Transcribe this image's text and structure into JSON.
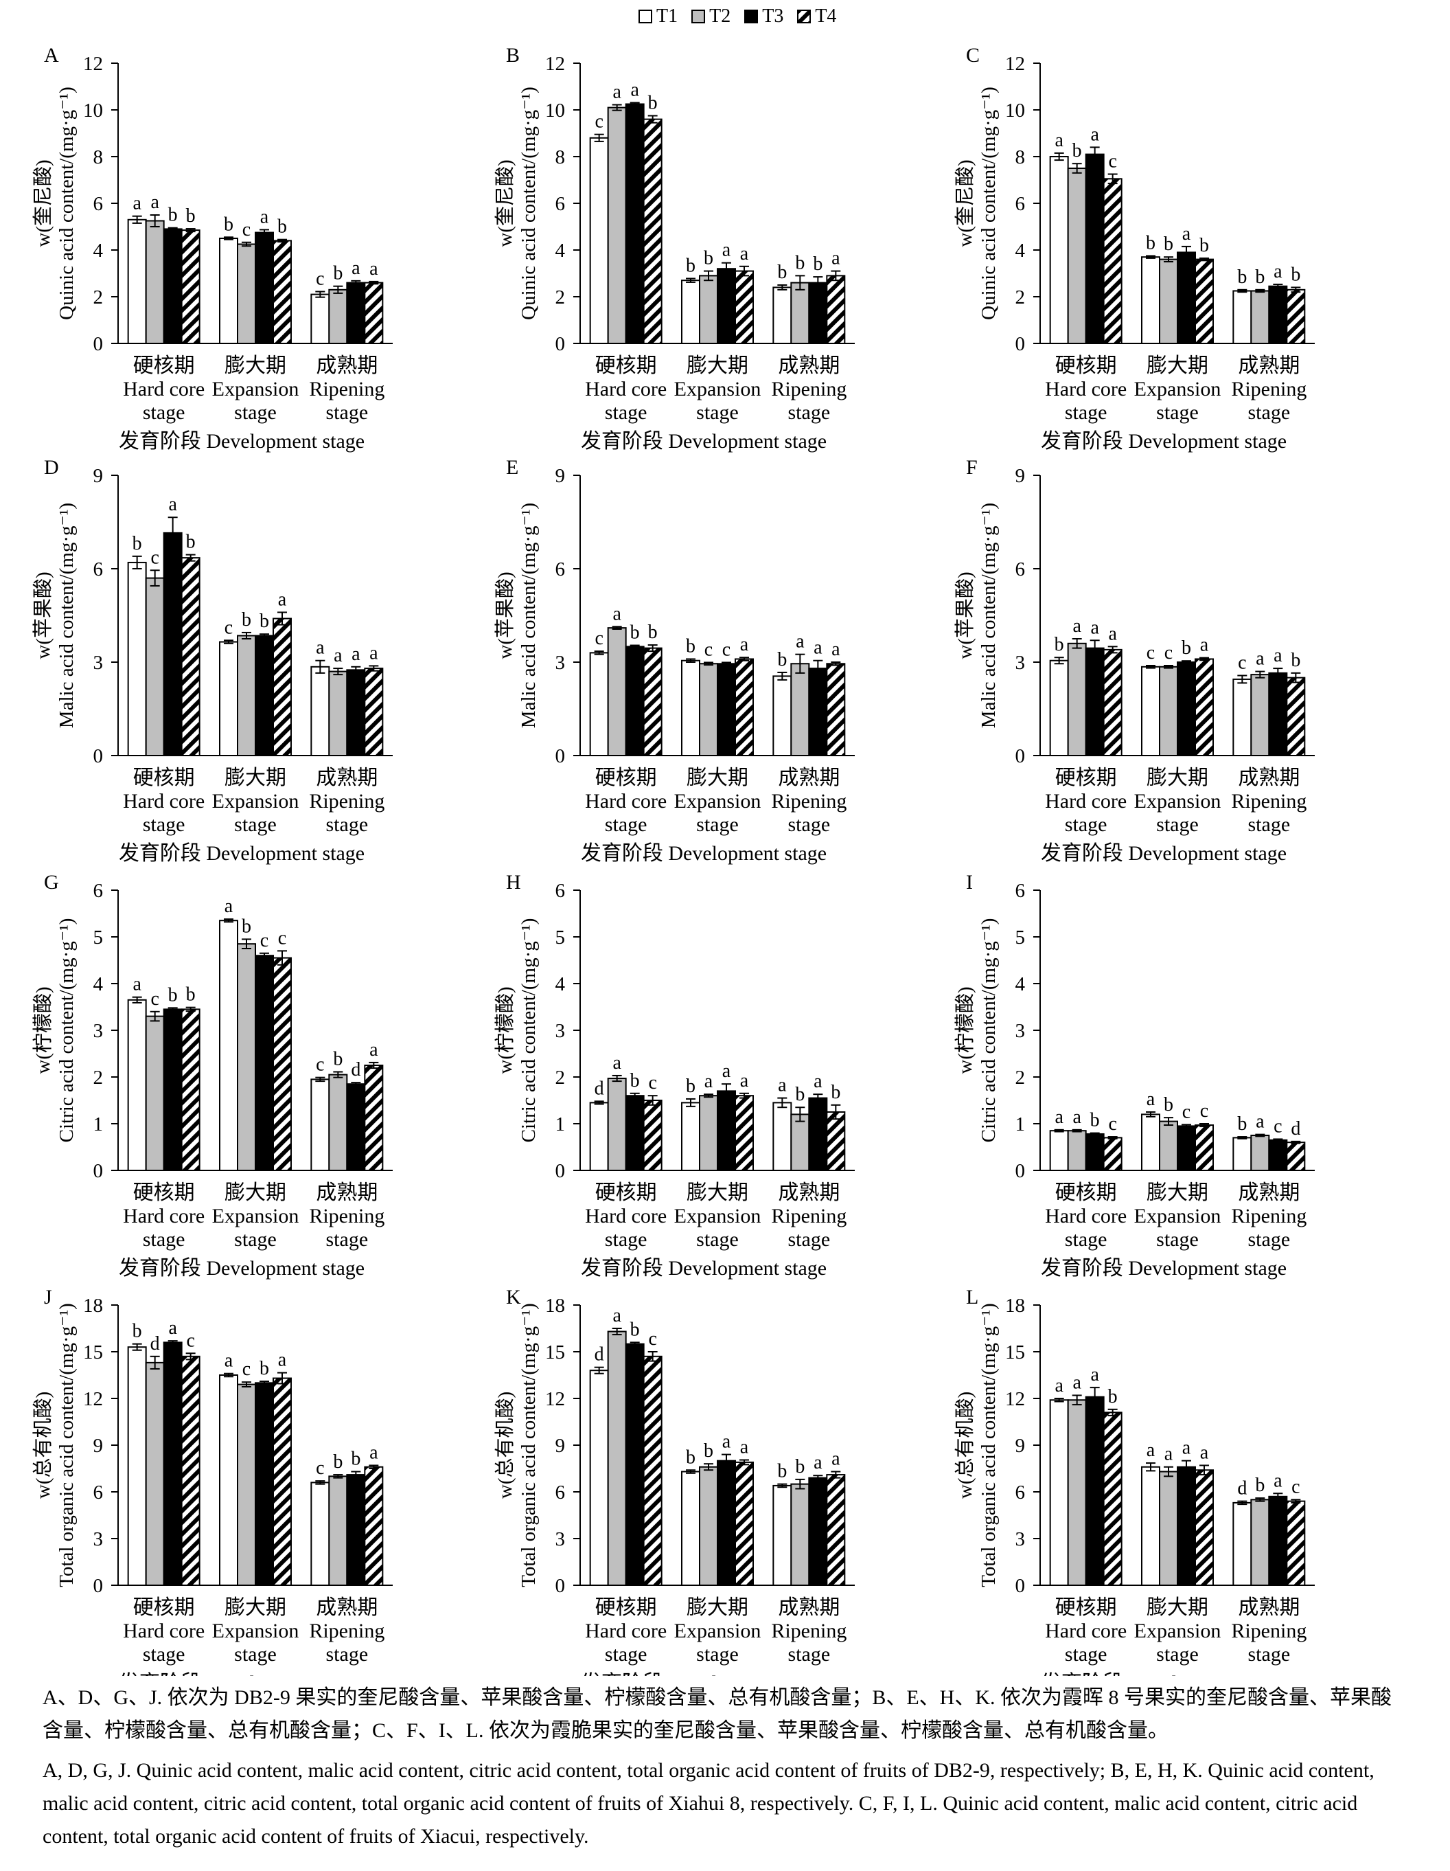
{
  "legend": {
    "items": [
      {
        "label": "T1",
        "fill": "#ffffff",
        "pattern": "none"
      },
      {
        "label": "T2",
        "fill": "#bfbfbf",
        "pattern": "none"
      },
      {
        "label": "T3",
        "fill": "#000000",
        "pattern": "none"
      },
      {
        "label": "T4",
        "fill": "#ffffff",
        "pattern": "diagonal-hatch"
      }
    ]
  },
  "shared": {
    "categories_cn": [
      "硬核期",
      "膨大期",
      "成熟期"
    ],
    "categories_en_line1": [
      "Hard core",
      "Expansion",
      "Ripening"
    ],
    "categories_en_line2": [
      "stage",
      "stage",
      "stage"
    ],
    "xlabel": "发育阶段 Development stage"
  },
  "chart_data": [
    {
      "panel": "A",
      "type": "bar",
      "ylabel_cn": "w(奎尼酸)",
      "ylabel_en": "Quinic acid content/(mg·g⁻¹)",
      "ylim": [
        0,
        12
      ],
      "yticks": [
        0,
        2,
        4,
        6,
        8,
        10,
        12
      ],
      "series": [
        {
          "name": "T1",
          "values": [
            5.3,
            4.5,
            2.1
          ],
          "errors": [
            0.15,
            0.05,
            0.12
          ]
        },
        {
          "name": "T2",
          "values": [
            5.25,
            4.25,
            2.3
          ],
          "errors": [
            0.25,
            0.08,
            0.15
          ]
        },
        {
          "name": "T3",
          "values": [
            4.9,
            4.75,
            2.6
          ],
          "errors": [
            0.05,
            0.12,
            0.08
          ]
        },
        {
          "name": "T4",
          "values": [
            4.85,
            4.4,
            2.6
          ],
          "errors": [
            0.06,
            0.05,
            0.05
          ]
        }
      ],
      "letters": [
        [
          "a",
          "a",
          "b",
          "b"
        ],
        [
          "b",
          "c",
          "a",
          "b"
        ],
        [
          "c",
          "b",
          "a",
          "a"
        ]
      ]
    },
    {
      "panel": "B",
      "type": "bar",
      "ylabel_cn": "w(奎尼酸)",
      "ylabel_en": "Quinic acid content/(mg·g⁻¹)",
      "ylim": [
        0,
        12
      ],
      "yticks": [
        0,
        2,
        4,
        6,
        8,
        10,
        12
      ],
      "series": [
        {
          "name": "T1",
          "values": [
            8.8,
            2.7,
            2.4
          ],
          "errors": [
            0.15,
            0.08,
            0.1
          ]
        },
        {
          "name": "T2",
          "values": [
            10.1,
            2.9,
            2.6
          ],
          "errors": [
            0.12,
            0.2,
            0.3
          ]
        },
        {
          "name": "T3",
          "values": [
            10.25,
            3.2,
            2.6
          ],
          "errors": [
            0.06,
            0.25,
            0.25
          ]
        },
        {
          "name": "T4",
          "values": [
            9.6,
            3.1,
            2.9
          ],
          "errors": [
            0.15,
            0.2,
            0.2
          ]
        }
      ],
      "letters": [
        [
          "c",
          "a",
          "a",
          "b"
        ],
        [
          "b",
          "b",
          "a",
          "a"
        ],
        [
          "b",
          "b",
          "b",
          "a"
        ]
      ]
    },
    {
      "panel": "C",
      "type": "bar",
      "ylabel_cn": "w(奎尼酸)",
      "ylabel_en": "Quinic acid content/(mg·g⁻¹)",
      "ylim": [
        0,
        12
      ],
      "yticks": [
        0,
        2,
        4,
        6,
        8,
        10,
        12
      ],
      "series": [
        {
          "name": "T1",
          "values": [
            8.0,
            3.7,
            2.25
          ],
          "errors": [
            0.15,
            0.05,
            0.05
          ]
        },
        {
          "name": "T2",
          "values": [
            7.5,
            3.6,
            2.25
          ],
          "errors": [
            0.2,
            0.1,
            0.05
          ]
        },
        {
          "name": "T3",
          "values": [
            8.1,
            3.9,
            2.45
          ],
          "errors": [
            0.3,
            0.25,
            0.08
          ]
        },
        {
          "name": "T4",
          "values": [
            7.05,
            3.6,
            2.3
          ],
          "errors": [
            0.2,
            0.05,
            0.1
          ]
        }
      ],
      "letters": [
        [
          "a",
          "b",
          "a",
          "c"
        ],
        [
          "b",
          "b",
          "a",
          "b"
        ],
        [
          "b",
          "b",
          "a",
          "b"
        ]
      ]
    },
    {
      "panel": "D",
      "type": "bar",
      "ylabel_cn": "w(苹果酸)",
      "ylabel_en": "Malic acid content/(mg·g⁻¹)",
      "ylim": [
        0,
        9
      ],
      "yticks": [
        0,
        3,
        6,
        9
      ],
      "series": [
        {
          "name": "T1",
          "values": [
            6.2,
            3.65,
            2.85
          ],
          "errors": [
            0.2,
            0.05,
            0.2
          ]
        },
        {
          "name": "T2",
          "values": [
            5.7,
            3.85,
            2.7
          ],
          "errors": [
            0.25,
            0.1,
            0.1
          ]
        },
        {
          "name": "T3",
          "values": [
            7.15,
            3.85,
            2.75
          ],
          "errors": [
            0.5,
            0.05,
            0.1
          ]
        },
        {
          "name": "T4",
          "values": [
            6.35,
            4.4,
            2.8
          ],
          "errors": [
            0.1,
            0.2,
            0.08
          ]
        }
      ],
      "letters": [
        [
          "b",
          "c",
          "a",
          "b"
        ],
        [
          "c",
          "b",
          "b",
          "a"
        ],
        [
          "a",
          "a",
          "a",
          "a"
        ]
      ]
    },
    {
      "panel": "E",
      "type": "bar",
      "ylabel_cn": "w(苹果酸)",
      "ylabel_en": "Malic acid content/(mg·g⁻¹)",
      "ylim": [
        0,
        9
      ],
      "yticks": [
        0,
        3,
        6,
        9
      ],
      "series": [
        {
          "name": "T1",
          "values": [
            3.3,
            3.05,
            2.55
          ],
          "errors": [
            0.05,
            0.05,
            0.12
          ]
        },
        {
          "name": "T2",
          "values": [
            4.1,
            2.95,
            2.95
          ],
          "errors": [
            0.04,
            0.04,
            0.3
          ]
        },
        {
          "name": "T3",
          "values": [
            3.5,
            2.95,
            2.8
          ],
          "errors": [
            0.04,
            0.04,
            0.25
          ]
        },
        {
          "name": "T4",
          "values": [
            3.45,
            3.1,
            2.95
          ],
          "errors": [
            0.1,
            0.05,
            0.05
          ]
        }
      ],
      "letters": [
        [
          "c",
          "a",
          "b",
          "b"
        ],
        [
          "b",
          "c",
          "c",
          "a"
        ],
        [
          "b",
          "a",
          "a",
          "a"
        ]
      ]
    },
    {
      "panel": "F",
      "type": "bar",
      "ylabel_cn": "w(苹果酸)",
      "ylabel_en": "Malic acid content/(mg·g⁻¹)",
      "ylim": [
        0,
        9
      ],
      "yticks": [
        0,
        3,
        6,
        9
      ],
      "series": [
        {
          "name": "T1",
          "values": [
            3.05,
            2.85,
            2.45
          ],
          "errors": [
            0.1,
            0.04,
            0.12
          ]
        },
        {
          "name": "T2",
          "values": [
            3.6,
            2.85,
            2.6
          ],
          "errors": [
            0.15,
            0.04,
            0.1
          ]
        },
        {
          "name": "T3",
          "values": [
            3.45,
            3.0,
            2.65
          ],
          "errors": [
            0.25,
            0.04,
            0.15
          ]
        },
        {
          "name": "T4",
          "values": [
            3.4,
            3.1,
            2.5
          ],
          "errors": [
            0.1,
            0.04,
            0.15
          ]
        }
      ],
      "letters": [
        [
          "b",
          "a",
          "a",
          "a"
        ],
        [
          "c",
          "c",
          "b",
          "a"
        ],
        [
          "c",
          "a",
          "a",
          "b"
        ]
      ]
    },
    {
      "panel": "G",
      "type": "bar",
      "ylabel_cn": "w(柠檬酸)",
      "ylabel_en": "Citric acid content/(mg·g⁻¹)",
      "ylim": [
        0,
        6
      ],
      "yticks": [
        0,
        1,
        2,
        3,
        4,
        5,
        6
      ],
      "series": [
        {
          "name": "T1",
          "values": [
            3.65,
            5.35,
            1.95
          ],
          "errors": [
            0.06,
            0.03,
            0.04
          ]
        },
        {
          "name": "T2",
          "values": [
            3.3,
            4.85,
            2.05
          ],
          "errors": [
            0.1,
            0.1,
            0.06
          ]
        },
        {
          "name": "T3",
          "values": [
            3.45,
            4.6,
            1.85
          ],
          "errors": [
            0.03,
            0.05,
            0.03
          ]
        },
        {
          "name": "T4",
          "values": [
            3.45,
            4.55,
            2.25
          ],
          "errors": [
            0.04,
            0.15,
            0.06
          ]
        }
      ],
      "letters": [
        [
          "a",
          "c",
          "b",
          "b"
        ],
        [
          "a",
          "b",
          "c",
          "c"
        ],
        [
          "c",
          "b",
          "d",
          "a"
        ]
      ]
    },
    {
      "panel": "H",
      "type": "bar",
      "ylabel_cn": "w(柠檬酸)",
      "ylabel_en": "Citric acid content/(mg·g⁻¹)",
      "ylim": [
        0,
        6
      ],
      "yticks": [
        0,
        1,
        2,
        3,
        4,
        5,
        6
      ],
      "series": [
        {
          "name": "T1",
          "values": [
            1.45,
            1.45,
            1.45
          ],
          "errors": [
            0.03,
            0.08,
            0.1
          ]
        },
        {
          "name": "T2",
          "values": [
            1.97,
            1.6,
            1.2
          ],
          "errors": [
            0.06,
            0.03,
            0.15
          ]
        },
        {
          "name": "T3",
          "values": [
            1.6,
            1.7,
            1.55
          ],
          "errors": [
            0.05,
            0.15,
            0.08
          ]
        },
        {
          "name": "T4",
          "values": [
            1.5,
            1.6,
            1.25
          ],
          "errors": [
            0.1,
            0.05,
            0.15
          ]
        }
      ],
      "letters": [
        [
          "d",
          "a",
          "b",
          "c"
        ],
        [
          "b",
          "a",
          "a",
          "a"
        ],
        [
          "a",
          "b",
          "a",
          "b"
        ]
      ]
    },
    {
      "panel": "I",
      "type": "bar",
      "ylabel_cn": "w(柠檬酸)",
      "ylabel_en": "Citric acid content/(mg·g⁻¹)",
      "ylim": [
        0,
        6
      ],
      "yticks": [
        0,
        1,
        2,
        3,
        4,
        5,
        6
      ],
      "series": [
        {
          "name": "T1",
          "values": [
            0.85,
            1.2,
            0.7
          ],
          "errors": [
            0.02,
            0.05,
            0.02
          ]
        },
        {
          "name": "T2",
          "values": [
            0.85,
            1.05,
            0.75
          ],
          "errors": [
            0.02,
            0.08,
            0.02
          ]
        },
        {
          "name": "T3",
          "values": [
            0.78,
            0.95,
            0.65
          ],
          "errors": [
            0.02,
            0.03,
            0.02
          ]
        },
        {
          "name": "T4",
          "values": [
            0.7,
            0.97,
            0.6
          ],
          "errors": [
            0.02,
            0.03,
            0.02
          ]
        }
      ],
      "letters": [
        [
          "a",
          "a",
          "b",
          "c"
        ],
        [
          "a",
          "b",
          "c",
          "c"
        ],
        [
          "b",
          "a",
          "c",
          "d"
        ]
      ]
    },
    {
      "panel": "J",
      "type": "bar",
      "ylabel_cn": "w(总有机酸)",
      "ylabel_en": "Total organic acid content/(mg·g⁻¹)",
      "ylim": [
        0,
        18
      ],
      "yticks": [
        0,
        3,
        6,
        9,
        12,
        15,
        18
      ],
      "series": [
        {
          "name": "T1",
          "values": [
            15.3,
            13.5,
            6.6
          ],
          "errors": [
            0.2,
            0.1,
            0.1
          ]
        },
        {
          "name": "T2",
          "values": [
            14.3,
            12.9,
            7.0
          ],
          "errors": [
            0.4,
            0.15,
            0.1
          ]
        },
        {
          "name": "T3",
          "values": [
            15.6,
            13.0,
            7.1
          ],
          "errors": [
            0.1,
            0.1,
            0.2
          ]
        },
        {
          "name": "T4",
          "values": [
            14.7,
            13.3,
            7.6
          ],
          "errors": [
            0.2,
            0.35,
            0.1
          ]
        }
      ],
      "letters": [
        [
          "b",
          "d",
          "a",
          "c"
        ],
        [
          "a",
          "c",
          "b",
          "a"
        ],
        [
          "c",
          "b",
          "b",
          "a"
        ]
      ]
    },
    {
      "panel": "K",
      "type": "bar",
      "ylabel_cn": "w(总有机酸)",
      "ylabel_en": "Total organic acid content/(mg·g⁻¹)",
      "ylim": [
        0,
        18
      ],
      "yticks": [
        0,
        3,
        6,
        9,
        12,
        15,
        18
      ],
      "series": [
        {
          "name": "T1",
          "values": [
            13.8,
            7.3,
            6.4
          ],
          "errors": [
            0.2,
            0.1,
            0.1
          ]
        },
        {
          "name": "T2",
          "values": [
            16.3,
            7.6,
            6.5
          ],
          "errors": [
            0.2,
            0.2,
            0.3
          ]
        },
        {
          "name": "T3",
          "values": [
            15.5,
            8.0,
            6.9
          ],
          "errors": [
            0.1,
            0.4,
            0.15
          ]
        },
        {
          "name": "T4",
          "values": [
            14.7,
            7.9,
            7.1
          ],
          "errors": [
            0.3,
            0.15,
            0.2
          ]
        }
      ],
      "letters": [
        [
          "d",
          "a",
          "b",
          "c"
        ],
        [
          "b",
          "b",
          "a",
          "a"
        ],
        [
          "b",
          "b",
          "a",
          "a"
        ]
      ]
    },
    {
      "panel": "L",
      "type": "bar",
      "ylabel_cn": "w(总有机酸)",
      "ylabel_en": "Total organic acid content/(mg·g⁻¹)",
      "ylim": [
        0,
        18
      ],
      "yticks": [
        0,
        3,
        6,
        9,
        12,
        15,
        18
      ],
      "series": [
        {
          "name": "T1",
          "values": [
            11.9,
            7.6,
            5.3
          ],
          "errors": [
            0.1,
            0.25,
            0.1
          ]
        },
        {
          "name": "T2",
          "values": [
            11.9,
            7.3,
            5.5
          ],
          "errors": [
            0.3,
            0.3,
            0.1
          ]
        },
        {
          "name": "T3",
          "values": [
            12.1,
            7.6,
            5.7
          ],
          "errors": [
            0.6,
            0.4,
            0.2
          ]
        },
        {
          "name": "T4",
          "values": [
            11.1,
            7.4,
            5.4
          ],
          "errors": [
            0.2,
            0.3,
            0.1
          ]
        }
      ],
      "letters": [
        [
          "a",
          "a",
          "a",
          "b"
        ],
        [
          "a",
          "a",
          "a",
          "a"
        ],
        [
          "d",
          "b",
          "a",
          "c"
        ]
      ]
    }
  ],
  "caption": {
    "cn": "A、D、G、J. 依次为 DB2-9 果实的奎尼酸含量、苹果酸含量、柠檬酸含量、总有机酸含量；B、E、H、K. 依次为霞晖 8 号果实的奎尼酸含量、苹果酸含量、柠檬酸含量、总有机酸含量；C、F、I、L. 依次为霞脆果实的奎尼酸含量、苹果酸含量、柠檬酸含量、总有机酸含量。",
    "en": "A, D, G, J. Quinic acid content, malic acid content, citric acid content, total organic acid content of fruits of DB2-9, respectively; B, E, H, K. Quinic acid content, malic acid content, citric acid content, total organic acid content of fruits of Xiahui 8, respectively. C, F, I, L. Quinic acid content, malic acid content, citric acid content, total organic acid content of fruits of Xiacui, respectively."
  }
}
